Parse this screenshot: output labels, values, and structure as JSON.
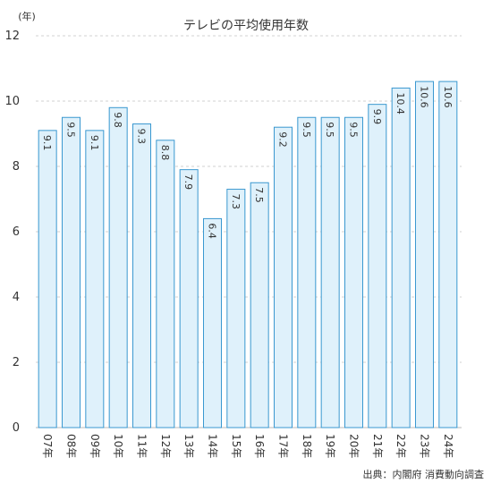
{
  "chart_data": {
    "type": "bar",
    "title": "テレビの平均使用年数",
    "ylabel": "(年)",
    "ylim": [
      0,
      12
    ],
    "yticks": [
      0,
      2,
      4,
      6,
      8,
      10,
      12
    ],
    "grid": true,
    "categories": [
      "07年",
      "08年",
      "09年",
      "10年",
      "11年",
      "12年",
      "13年",
      "14年",
      "15年",
      "16年",
      "17年",
      "18年",
      "19年",
      "20年",
      "21年",
      "22年",
      "23年",
      "24年"
    ],
    "values": [
      9.1,
      9.5,
      9.1,
      9.8,
      9.3,
      8.8,
      7.9,
      6.4,
      7.3,
      7.5,
      9.2,
      9.5,
      9.5,
      9.5,
      9.9,
      10.4,
      10.6,
      10.6
    ],
    "value_labels": [
      "9.1",
      "9.5",
      "9.1",
      "9.8",
      "9.3",
      "8.8",
      "7.9",
      "6.4",
      "7.3",
      "7.5",
      "9.2",
      "9.5",
      "9.5",
      "9.5",
      "9.9",
      "10.4",
      "10.6",
      "10.6"
    ],
    "source": "出典：内閣府 消費動向調査",
    "colors": {
      "bar_fill": "#dff1fb",
      "bar_stroke": "#3a98d0"
    }
  }
}
